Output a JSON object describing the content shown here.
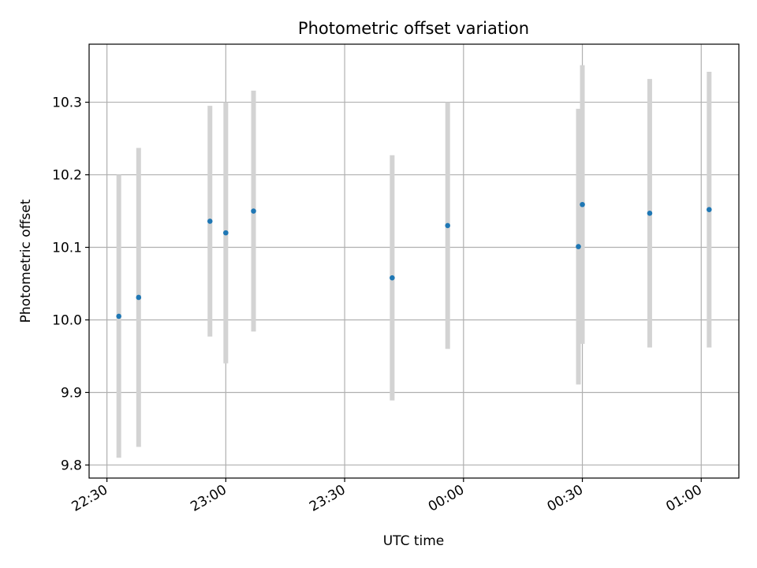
{
  "chart_data": {
    "type": "scatter",
    "title": "Photometric offset variation",
    "xlabel": "UTC time",
    "ylabel": "Photometric offset",
    "grid": true,
    "x_tick_labels": [
      "22:30",
      "23:00",
      "23:30",
      "00:00",
      "00:30",
      "01:00"
    ],
    "x_tick_minutes": [
      -90,
      -60,
      -30,
      0,
      30,
      60
    ],
    "xlim_minutes": [
      -94.5,
      69.5
    ],
    "y_ticks": [
      9.8,
      9.9,
      10.0,
      10.1,
      10.2,
      10.3
    ],
    "y_tick_labels": [
      "9.8",
      "9.9",
      "10.0",
      "10.1",
      "10.2",
      "10.3"
    ],
    "ylim": [
      9.782,
      10.38
    ],
    "x_labels": [
      "22:33",
      "22:38",
      "22:56",
      "23:00",
      "23:07",
      "23:42",
      "23:56",
      "00:29",
      "00:30",
      "00:47",
      "01:02"
    ],
    "x_minutes": [
      -87,
      -82,
      -64,
      -60,
      -53,
      -18,
      -4,
      29,
      30,
      47,
      62
    ],
    "y": [
      10.005,
      10.031,
      10.136,
      10.12,
      10.15,
      10.058,
      10.13,
      10.101,
      10.159,
      10.147,
      10.152
    ],
    "yerr": [
      0.195,
      0.206,
      0.159,
      0.18,
      0.166,
      0.169,
      0.17,
      0.19,
      0.192,
      0.185,
      0.19
    ],
    "marker_color": "#1f77b4",
    "errorbar_color": "#d3d3d3"
  }
}
